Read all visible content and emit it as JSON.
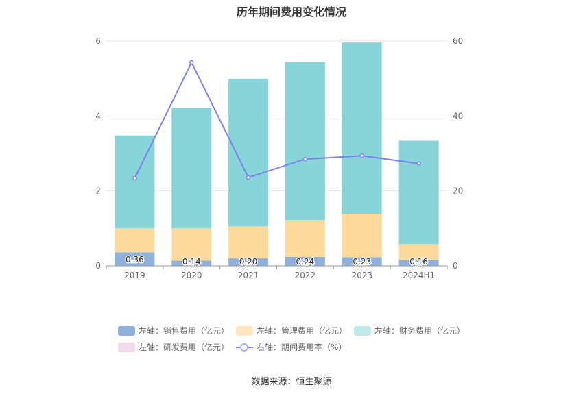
{
  "chart_data": {
    "type": "bar",
    "title": "历年期间费用变化情况",
    "categories": [
      "2019",
      "2020",
      "2021",
      "2022",
      "2023",
      "2024H1"
    ],
    "y_left": {
      "ylim": [
        0,
        6
      ],
      "ticks": [
        0,
        2,
        4,
        6
      ]
    },
    "y_right": {
      "ylim": [
        0,
        60
      ],
      "ticks": [
        0,
        20,
        40,
        60
      ]
    },
    "stacked": true,
    "series": [
      {
        "name": "左轴：销售费用（亿元）",
        "axis": "left",
        "type": "bar",
        "color": "#8eb0dc",
        "values": [
          0.36,
          0.14,
          0.2,
          0.24,
          0.23,
          0.16
        ],
        "labels": [
          "0.36",
          "0.14",
          "0.20",
          "0.24",
          "0.23",
          "0.16"
        ]
      },
      {
        "name": "左轴：管理费用（亿元）",
        "axis": "left",
        "type": "bar",
        "color": "#fdd99c",
        "values": [
          0.64,
          0.86,
          0.85,
          0.98,
          1.16,
          0.42
        ]
      },
      {
        "name": "左轴：财务费用（亿元）",
        "axis": "left",
        "type": "bar",
        "color": "#88d5d9",
        "values": [
          2.48,
          3.22,
          3.94,
          4.22,
          4.57,
          2.76
        ]
      },
      {
        "name": "左轴：研发费用（亿元）",
        "axis": "left",
        "type": "bar",
        "color": "#f2d9ec",
        "values": [
          0,
          0,
          0,
          0,
          0,
          0
        ]
      },
      {
        "name": "右轴：期间费用率（%）",
        "axis": "right",
        "type": "line",
        "color": "#7b7ff0",
        "values": [
          23.4,
          54.3,
          23.6,
          28.5,
          29.4,
          27.3
        ]
      }
    ],
    "grid": true,
    "legend_position": "bottom"
  },
  "legend_rows": [
    [
      "左轴：销售费用（亿元）",
      "左轴：管理费用（亿元）",
      "左轴：财务费用（亿元）"
    ],
    [
      "左轴：研发费用（亿元）",
      "右轴：期间费用率（%）"
    ]
  ],
  "source": "数据来源：恒生聚源"
}
